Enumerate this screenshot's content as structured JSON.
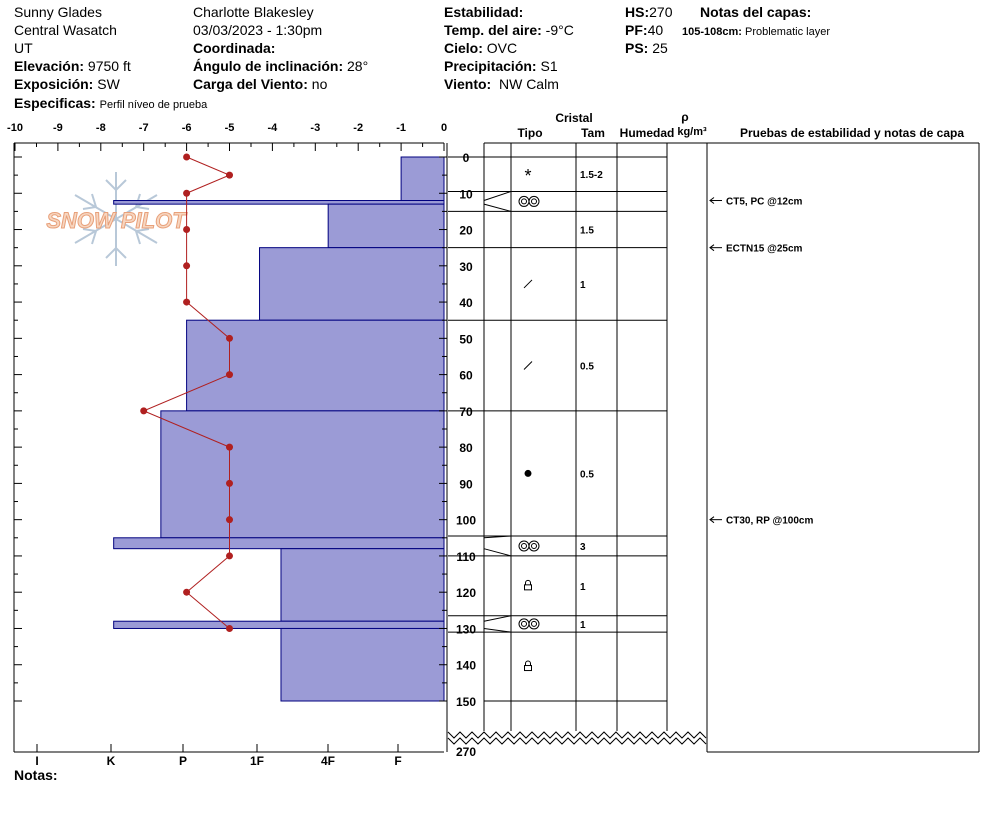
{
  "header": {
    "location": "Sunny Glades",
    "region": "Central Wasatch",
    "state": "UT",
    "elevation_label": "Elevación:",
    "elevation": "9750 ft",
    "aspect_label": "Exposición:",
    "aspect": "SW",
    "specifics_label": "Especificas:",
    "specifics": "Perfil níveo de prueba",
    "observer": "Charlotte Blakesley",
    "datetime": "03/03/2023 - 1:30pm",
    "coord_label": "Coordinada:",
    "slope_label": "Ángulo de inclinación:",
    "slope": "28°",
    "wind_load_label": "Carga del Viento:",
    "wind_load": "no",
    "stability_label": "Estabilidad:",
    "air_temp_label": "Temp. del aire:",
    "air_temp": "-9°C",
    "sky_label": "Cielo:",
    "sky": "OVC",
    "precip_label": "Precipitación:",
    "precip": "S1",
    "wind_label": "Viento:",
    "wind": "NW Calm",
    "hs_label": "HS:",
    "hs": "270",
    "pf_label": "PF:",
    "pf": "40",
    "ps_label": "PS:",
    "ps": "25",
    "layer_notes_label": "Notas del capas:",
    "layer_note_depth": "105-108cm:",
    "layer_note_text": "Problematic layer",
    "logo_text": "SNOW PILOT"
  },
  "footer": {
    "notes_label": "Notas:"
  },
  "chart_data": {
    "type": "snow-profile",
    "temperature_axis": {
      "ticks": [
        "-10",
        "-9",
        "-8",
        "-7",
        "-6",
        "-5",
        "-4",
        "-3",
        "-2",
        "-1",
        "0"
      ],
      "range": [
        -10,
        0
      ]
    },
    "hardness_axis": {
      "ticks": [
        "I",
        "K",
        "P",
        "1F",
        "4F",
        "F"
      ]
    },
    "depth_axis": {
      "ticks": [
        "0",
        "10",
        "20",
        "30",
        "40",
        "50",
        "60",
        "70",
        "80",
        "90",
        "100",
        "110",
        "120",
        "130",
        "140",
        "150"
      ],
      "range": [
        0,
        150
      ],
      "bottom_label": "270"
    },
    "temperature_profile": [
      {
        "depth": 0,
        "temp": -6
      },
      {
        "depth": 5,
        "temp": -5
      },
      {
        "depth": 10,
        "temp": -6
      },
      {
        "depth": 20,
        "temp": -6
      },
      {
        "depth": 30,
        "temp": -6
      },
      {
        "depth": 40,
        "temp": -6
      },
      {
        "depth": 50,
        "temp": -5
      },
      {
        "depth": 60,
        "temp": -5
      },
      {
        "depth": 70,
        "temp": -7
      },
      {
        "depth": 80,
        "temp": -5
      },
      {
        "depth": 90,
        "temp": -5
      },
      {
        "depth": 100,
        "temp": -5
      },
      {
        "depth": 110,
        "temp": -5
      },
      {
        "depth": 120,
        "temp": -6
      },
      {
        "depth": 130,
        "temp": -5
      }
    ],
    "hardness_layers": [
      {
        "top": 0,
        "bottom": 12,
        "hardness": -1
      },
      {
        "top": 12,
        "bottom": 13,
        "hardness": -7.7
      },
      {
        "top": 13,
        "bottom": 25,
        "hardness": -2.7
      },
      {
        "top": 25,
        "bottom": 45,
        "hardness": -4.3
      },
      {
        "top": 45,
        "bottom": 70,
        "hardness": -6
      },
      {
        "top": 70,
        "bottom": 105,
        "hardness": -6.6
      },
      {
        "top": 105,
        "bottom": 108,
        "hardness": -7.7
      },
      {
        "top": 108,
        "bottom": 128,
        "hardness": -3.8
      },
      {
        "top": 128,
        "bottom": 130,
        "hardness": -7.7
      },
      {
        "top": 130,
        "bottom": 150,
        "hardness": -3.8
      }
    ],
    "column_headers": {
      "crystal": "Cristal",
      "type": "Tipo",
      "size": "Tam",
      "moisture": "Humedad",
      "density_symbol": "ρ",
      "density_unit": "kg/m³",
      "tests": "Pruebas de estabilidad y notas de capa"
    },
    "layers": [
      {
        "top": 0,
        "bottom": 9.5,
        "crystal": "star",
        "size": "1.5-2"
      },
      {
        "top": 9.5,
        "bottom": 15,
        "crystal": "double-circle",
        "size": ""
      },
      {
        "top": 15,
        "bottom": 25,
        "crystal": "",
        "size": "1.5"
      },
      {
        "top": 25,
        "bottom": 45,
        "crystal": "slash",
        "size": "1"
      },
      {
        "top": 45,
        "bottom": 70,
        "crystal": "slash",
        "size": "0.5"
      },
      {
        "top": 70,
        "bottom": 104.5,
        "crystal": "dot",
        "size": "0.5"
      },
      {
        "top": 104.5,
        "bottom": 110,
        "crystal": "double-circle",
        "size": "3"
      },
      {
        "top": 110,
        "bottom": 126.5,
        "crystal": "lock",
        "size": "1"
      },
      {
        "top": 126.5,
        "bottom": 131,
        "crystal": "double-circle",
        "size": "1"
      },
      {
        "top": 131,
        "bottom": 150,
        "crystal": "lock",
        "size": ""
      }
    ],
    "tests": [
      {
        "depth": 12,
        "text": "CT5, PC @12cm"
      },
      {
        "depth": 25,
        "text": "ECTN15 @25cm"
      },
      {
        "depth": 100,
        "text": "CT30, RP @100cm"
      }
    ],
    "colors": {
      "layer_fill": "#9b9bd6",
      "layer_stroke": "#00007f",
      "temp_line": "#b02020",
      "logo": "#f0b08a",
      "snowflake": "#b8c8d8"
    }
  }
}
